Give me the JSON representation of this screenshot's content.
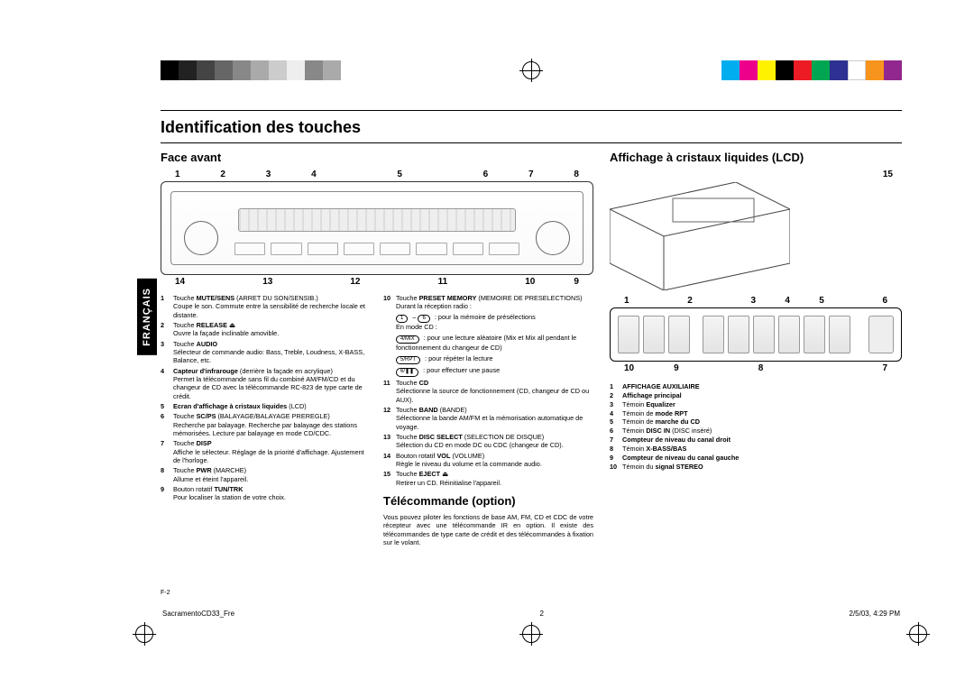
{
  "page": {
    "lang_tab": "FRANÇAIS",
    "title": "Identification des touches",
    "page_label": "F-2",
    "doc_name": "SacramentoCD33_Fre",
    "page_num": "2",
    "timestamp": "2/5/03, 4:29 PM"
  },
  "color_bar_left": [
    "#000000",
    "#222222",
    "#444444",
    "#666666",
    "#888888",
    "#aaaaaa",
    "#cccccc",
    "#eeeeee",
    "#888888",
    "#aaaaaa"
  ],
  "color_bar_right": [
    "#00aeef",
    "#ec008c",
    "#fff200",
    "#000000",
    "#ed1c24",
    "#00a651",
    "#2e3192",
    "#ffffff",
    "#f7941d",
    "#92278f"
  ],
  "front": {
    "heading": "Face avant",
    "top_nums": [
      "1",
      "2",
      "3",
      "4",
      "",
      "5",
      "",
      "6",
      "7",
      "8"
    ],
    "bottom_nums": [
      "14",
      "",
      "13",
      "",
      "12",
      "",
      "11",
      "",
      "10",
      "9"
    ]
  },
  "lcd": {
    "heading": "Affichage à cristaux liquides (LCD)",
    "top_nums": [
      "1",
      "",
      "2",
      "",
      "3",
      "4",
      "5",
      "",
      "6"
    ],
    "bottom_nums": [
      "10",
      "9",
      "",
      "8",
      "",
      "",
      "7"
    ],
    "aux_num": "15"
  },
  "descL": [
    {
      "n": "1",
      "html": "Touche <b>MUTE/SENS</b> (ARRET DU SON/SENSIB.)<br>Coupe le son. Commute entre la sensibilité de recherche locale et distante."
    },
    {
      "n": "2",
      "html": "Touche <b>RELEASE</b> ⏏<br>Ouvre la façade inclinable amovible."
    },
    {
      "n": "3",
      "html": "Touche <b>AUDIO</b><br>Sélecteur de commande audio: Bass, Treble, Loudness, X-BASS, Balance, etc."
    },
    {
      "n": "4",
      "html": "<b>Capteur d'infrarouge</b> (derrière la façade en acrylique)<br>Permet la télécommande sans fil du combiné AM/FM/CD et du changeur de CD avec la télécommande RC-823 de type carte de crédit."
    },
    {
      "n": "5",
      "html": "<b>Ecran d'affichage à cristaux liquides</b> (LCD)"
    },
    {
      "n": "6",
      "html": "Touche <b>SC/PS</b> (BALAYAGE/BALAYAGE PREREGLE)<br>Recherche par balayage. Recherche par balayage des stations mémorisées. Lecture par balayage en mode CD/CDC."
    },
    {
      "n": "7",
      "html": "Touche <b>DISP</b><br>Affiche le sélecteur. Réglage de la priorité d'affichage. Ajustement de l'horloge."
    },
    {
      "n": "8",
      "html": "Touche <b>PWR</b> (MARCHE)<br>Allume et éteint l'appareil."
    },
    {
      "n": "9",
      "html": "Bouton rotatif <b>TUN/TRK</b><br>Pour localiser la station de votre choix."
    }
  ],
  "descR": [
    {
      "n": "10",
      "html": "Touche <b>PRESET MEMORY</b> (MEMOIRE DE PRESELECTIONS)<br>Durant la réception radio :"
    },
    {
      "n": "",
      "html": "<span class='icon-badge'>1</span> – <span class='icon-badge'>6</span> : pour la mémoire de présélections<br>En mode CD :"
    },
    {
      "n": "",
      "html": "<span class='icon-badge'>4/MIX</span> : pour une lecture aléatoire (Mix et Mix all pendant le fonctionnement du changeur de CD)"
    },
    {
      "n": "",
      "html": "<span class='icon-badge'>5/RPT</span> : pour répéter la lecture"
    },
    {
      "n": "",
      "html": "<span class='icon-badge'>6/❚❚</span> : pour effectuer une pause"
    },
    {
      "n": "11",
      "html": "Touche <b>CD</b><br>Sélectionne la source de fonctionnement (CD, changeur de CD ou AUX)."
    },
    {
      "n": "12",
      "html": "Touche <b>BAND</b> (BANDE)<br>Sélectionne la bande AM/FM et la mémorisation automatique de voyage."
    },
    {
      "n": "13",
      "html": "Touche <b>DISC SELECT</b> (SELECTION DE DISQUE)<br>Sélection du CD en mode DC ou CDC (changeur de CD)."
    },
    {
      "n": "14",
      "html": "Bouton rotatif <b>VOL</b> (VOLUME)<br>Règle le niveau du volume et la commande audio."
    },
    {
      "n": "15",
      "html": "Touche <b>EJECT</b> ⏏<br>Retirer un CD. Réinitialise l'appareil."
    }
  ],
  "remote": {
    "heading": "Télécommande (option)",
    "body": "Vous pouvez piloter les fonctions de base AM, FM, CD et CDC de votre récepteur avec une télécommande IR en option. Il existe des télécommandes de type carte de crédit et des télécommandes à fixation sur le volant."
  },
  "lcd_list": [
    {
      "n": "1",
      "html": "<b>AFFICHAGE AUXILIAIRE</b>"
    },
    {
      "n": "2",
      "html": "<b>Affichage principal</b>"
    },
    {
      "n": "3",
      "html": "Témoin <b>Equalizer</b>"
    },
    {
      "n": "4",
      "html": "Témoin de <b>mode RPT</b>"
    },
    {
      "n": "5",
      "html": "Témoin de <b>marche du CD</b>"
    },
    {
      "n": "6",
      "html": "Témoin <b>DISC IN</b> (DISC inséré)"
    },
    {
      "n": "7",
      "html": "<b>Compteur de niveau du canal droit</b>"
    },
    {
      "n": "8",
      "html": "Témoin <b>X-BASS/BAS</b>"
    },
    {
      "n": "9",
      "html": "<b>Compteur de niveau du canal gauche</b>"
    },
    {
      "n": "10",
      "html": "Témoin du <b>signal STEREO</b>"
    }
  ]
}
